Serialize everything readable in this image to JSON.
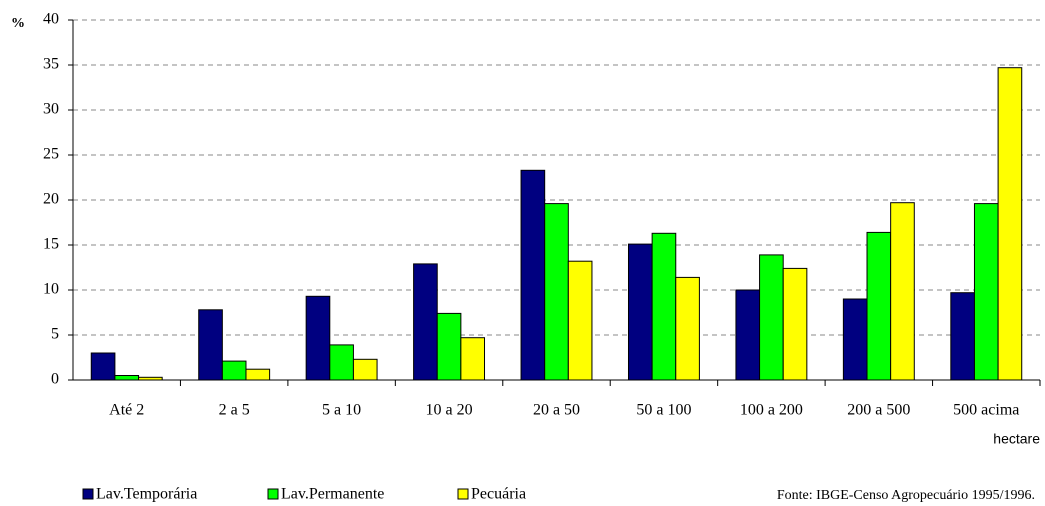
{
  "chart_data": {
    "type": "bar",
    "y_label": "%",
    "x_label": "hectare",
    "annotation": "Fonte: IBGE-Censo Agropecuário 1995/1996.",
    "categories": [
      "Até 2",
      "2 a 5",
      "5 a 10",
      "10 a 20",
      "20 a 50",
      "50 a 100",
      "100 a 200",
      "200 a 500",
      "500 acima"
    ],
    "series": [
      {
        "name": "Lav.Temporária",
        "color": "#000080",
        "values": [
          3.0,
          7.8,
          9.3,
          12.9,
          23.3,
          15.1,
          10.0,
          9.0,
          9.7
        ]
      },
      {
        "name": "Lav.Permanente",
        "color": "#00ff00",
        "values": [
          0.5,
          2.1,
          3.9,
          7.4,
          19.6,
          16.3,
          13.9,
          16.4,
          19.6
        ]
      },
      {
        "name": "Pecuária",
        "color": "#ffff00",
        "values": [
          0.3,
          1.2,
          2.3,
          4.7,
          13.2,
          11.4,
          12.4,
          19.7,
          34.7
        ]
      }
    ],
    "ylim": [
      0,
      40
    ],
    "yticks": [
      0,
      5,
      10,
      15,
      20,
      25,
      30,
      35,
      40
    ],
    "grid": true,
    "legend": "bottom-left"
  }
}
